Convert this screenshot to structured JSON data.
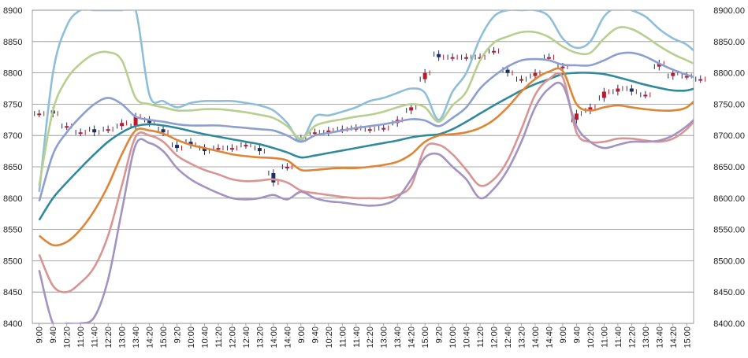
{
  "chart_data": {
    "type": "line",
    "title": "",
    "xlabel": "",
    "ylabel": "",
    "ylim": [
      8400,
      8900
    ],
    "grid": true,
    "legend": "none",
    "y_ticks_left": [
      "8400",
      "8450",
      "8500",
      "8550",
      "8600",
      "8650",
      "8700",
      "8750",
      "8800",
      "8850",
      "8900"
    ],
    "y_ticks_right": [
      "8400.00",
      "8450.00",
      "8500.00",
      "8550.00",
      "8600.00",
      "8650.00",
      "8700.00",
      "8750.00",
      "8800.00",
      "8850.00",
      "8900.00"
    ],
    "x_ticks": [
      "9:00",
      "9:40",
      "10:20",
      "11:00",
      "11:40",
      "12:20",
      "13:00",
      "13:40",
      "14:20",
      "15:00",
      "9:20",
      "10:00",
      "10:40",
      "11:20",
      "12:00",
      "12:40",
      "13:20",
      "14:00",
      "14:40",
      "9:00",
      "9:40",
      "10:20",
      "11:00",
      "11:40",
      "12:20",
      "13:00",
      "13:40",
      "14:20",
      "15:00",
      "9:20",
      "10:00",
      "10:40",
      "11:20",
      "12:00",
      "12:40",
      "13:20",
      "14:00",
      "14:40",
      "9:00",
      "9:40",
      "10:20",
      "11:00",
      "11:40",
      "12:20",
      "13:00",
      "13:40",
      "14:20",
      "15:00"
    ],
    "series": [
      {
        "color": "#8fbfd8",
        "values": [
          8610,
          8800,
          8875,
          8900,
          8900,
          8900,
          8900,
          8900,
          8765,
          8755,
          8745,
          8752,
          8755,
          8755,
          8755,
          8752,
          8748,
          8740,
          8720,
          8692,
          8730,
          8732,
          8738,
          8745,
          8755,
          8760,
          8768,
          8775,
          8768,
          8725,
          8770,
          8800,
          8855,
          8890,
          8900,
          8900,
          8900,
          8890,
          8855,
          8840,
          8850,
          8890,
          8905,
          8900,
          8890,
          8870,
          8855,
          8845,
          8825
        ]
      },
      {
        "color": "#b7cf8f",
        "values": [
          8620,
          8740,
          8790,
          8815,
          8830,
          8833,
          8820,
          8760,
          8750,
          8745,
          8740,
          8740,
          8742,
          8742,
          8740,
          8737,
          8733,
          8728,
          8715,
          8695,
          8715,
          8722,
          8726,
          8730,
          8733,
          8738,
          8745,
          8750,
          8745,
          8722,
          8748,
          8770,
          8820,
          8848,
          8858,
          8865,
          8865,
          8857,
          8842,
          8832,
          8832,
          8855,
          8872,
          8870,
          8858,
          8843,
          8830,
          8820,
          8810
        ]
      },
      {
        "color": "#8c9fcf",
        "values": [
          8595,
          8670,
          8705,
          8730,
          8750,
          8760,
          8750,
          8730,
          8725,
          8722,
          8718,
          8716,
          8716,
          8716,
          8714,
          8712,
          8710,
          8708,
          8700,
          8690,
          8700,
          8704,
          8708,
          8712,
          8715,
          8718,
          8722,
          8726,
          8724,
          8715,
          8728,
          8745,
          8775,
          8795,
          8810,
          8820,
          8822,
          8820,
          8813,
          8812,
          8812,
          8820,
          8830,
          8832,
          8826,
          8815,
          8805,
          8797,
          8790
        ]
      },
      {
        "color": "#31899c",
        "values": [
          8565,
          8600,
          8625,
          8648,
          8670,
          8690,
          8705,
          8715,
          8718,
          8716,
          8712,
          8707,
          8702,
          8698,
          8694,
          8690,
          8686,
          8680,
          8673,
          8665,
          8668,
          8672,
          8676,
          8680,
          8684,
          8688,
          8692,
          8697,
          8700,
          8702,
          8710,
          8722,
          8735,
          8748,
          8760,
          8772,
          8782,
          8790,
          8798,
          8800,
          8800,
          8798,
          8793,
          8787,
          8781,
          8776,
          8772,
          8772,
          8778
        ]
      },
      {
        "color": "#de8537",
        "values": [
          8540,
          8525,
          8530,
          8550,
          8580,
          8620,
          8670,
          8708,
          8708,
          8703,
          8693,
          8685,
          8680,
          8675,
          8670,
          8667,
          8665,
          8664,
          8660,
          8645,
          8645,
          8647,
          8648,
          8648,
          8650,
          8653,
          8658,
          8670,
          8690,
          8700,
          8702,
          8705,
          8712,
          8725,
          8745,
          8770,
          8790,
          8802,
          8803,
          8750,
          8740,
          8745,
          8748,
          8745,
          8742,
          8740,
          8740,
          8745,
          8765
        ]
      },
      {
        "color": "#d99593",
        "values": [
          8510,
          8460,
          8450,
          8465,
          8490,
          8540,
          8620,
          8698,
          8700,
          8690,
          8668,
          8655,
          8645,
          8638,
          8630,
          8627,
          8628,
          8630,
          8625,
          8612,
          8608,
          8605,
          8602,
          8600,
          8600,
          8600,
          8605,
          8620,
          8680,
          8685,
          8670,
          8645,
          8620,
          8630,
          8660,
          8710,
          8765,
          8790,
          8793,
          8705,
          8690,
          8690,
          8695,
          8695,
          8692,
          8690,
          8695,
          8710,
          8735
        ]
      },
      {
        "color": "#a393c0",
        "values": [
          8485,
          8400,
          8400,
          8400,
          8410,
          8470,
          8580,
          8685,
          8688,
          8675,
          8648,
          8630,
          8618,
          8608,
          8600,
          8598,
          8600,
          8605,
          8598,
          8610,
          8600,
          8595,
          8593,
          8590,
          8588,
          8590,
          8600,
          8630,
          8665,
          8670,
          8650,
          8630,
          8600,
          8615,
          8645,
          8690,
          8745,
          8775,
          8780,
          8715,
          8690,
          8680,
          8685,
          8690,
          8690,
          8692,
          8700,
          8715,
          8735
        ]
      }
    ],
    "candles": [
      [
        8735,
        8735
      ],
      [
        8740,
        8735
      ],
      [
        8715,
        8715
      ],
      [
        8705,
        8705
      ],
      [
        8710,
        8705
      ],
      [
        8710,
        8710
      ],
      [
        8715,
        8720
      ],
      [
        8715,
        8730
      ],
      [
        8725,
        8720
      ],
      [
        8710,
        8705
      ],
      [
        8685,
        8680
      ],
      [
        8690,
        8685
      ],
      [
        8680,
        8675
      ],
      [
        8680,
        8680
      ],
      [
        8680,
        8680
      ],
      [
        8685,
        8685
      ],
      [
        8680,
        8675
      ],
      [
        8640,
        8625
      ],
      [
        8650,
        8650
      ],
      [
        8695,
        8695
      ],
      [
        8705,
        8705
      ],
      [
        8705,
        8708
      ],
      [
        8710,
        8710
      ],
      [
        8712,
        8712
      ],
      [
        8710,
        8710
      ],
      [
        8712,
        8712
      ],
      [
        8720,
        8725
      ],
      [
        8740,
        8745
      ],
      [
        8790,
        8800
      ],
      [
        8830,
        8825
      ],
      [
        8825,
        8825
      ],
      [
        8825,
        8825
      ],
      [
        8825,
        8825
      ],
      [
        8835,
        8835
      ],
      [
        8805,
        8800
      ],
      [
        8790,
        8790
      ],
      [
        8795,
        8800
      ],
      [
        8825,
        8825
      ],
      [
        8810,
        8810
      ],
      [
        8725,
        8735
      ],
      [
        8740,
        8745
      ],
      [
        8760,
        8770
      ],
      [
        8770,
        8775
      ],
      [
        8775,
        8770
      ],
      [
        8765,
        8765
      ],
      [
        8810,
        8815
      ],
      [
        8795,
        8800
      ],
      [
        8795,
        8795
      ],
      [
        8790,
        8790
      ]
    ]
  }
}
